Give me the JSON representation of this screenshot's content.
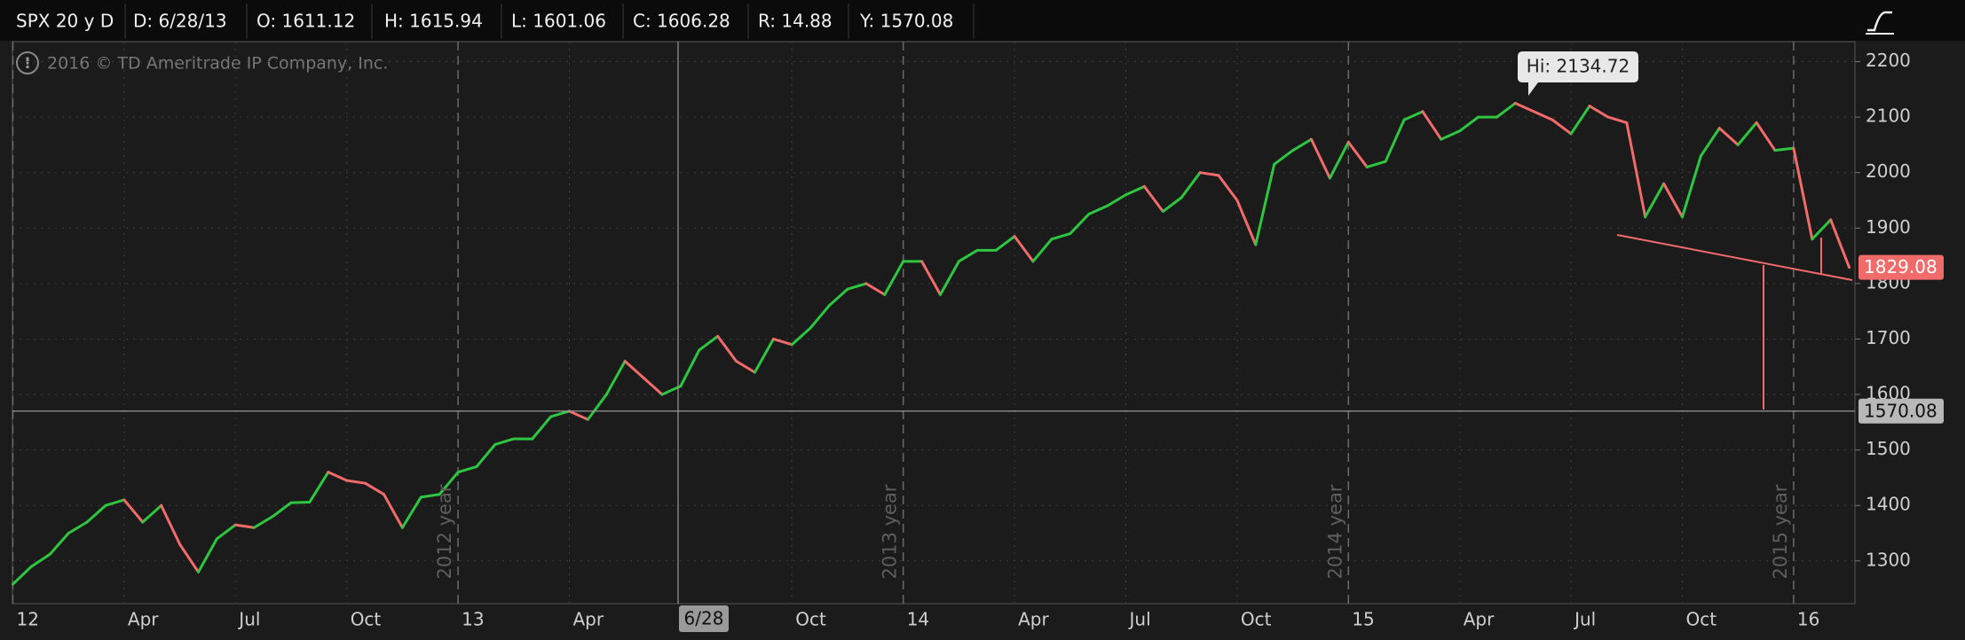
{
  "header": {
    "symbol": "SPX 20 y D",
    "date": "D: 6/28/13",
    "open": "O:  1611.12",
    "high": "H:  1615.94",
    "low": "L:  1601.06",
    "close": "C:  1606.28",
    "range": "R:  14.88",
    "y": "Y:  1570.08"
  },
  "chart_data": {
    "type": "line",
    "copyright": "2016 © TD Ameritrade IP Company, Inc.",
    "annotation": "Hi: 2134.72",
    "cursor_date": "6/28",
    "year_marks": [
      "2012 year",
      "2013 year",
      "2014 year",
      "2015 year"
    ],
    "categories": [
      "12",
      null,
      null,
      null,
      null,
      null,
      "Apr",
      null,
      null,
      null,
      null,
      null,
      "Jul",
      null,
      null,
      null,
      null,
      null,
      "Oct",
      null,
      null,
      null,
      null,
      null,
      "13",
      null,
      null,
      null,
      null,
      null,
      "Apr",
      null,
      null,
      null,
      null,
      null,
      null,
      null,
      null,
      null,
      null,
      null,
      "Oct",
      null,
      null,
      null,
      null,
      null,
      "14",
      null,
      null,
      null,
      null,
      null,
      "Apr",
      null,
      null,
      null,
      null,
      null,
      "Jul",
      null,
      null,
      null,
      null,
      null,
      "Oct",
      null,
      null,
      null,
      null,
      null,
      "15",
      null,
      null,
      null,
      null,
      null,
      "Apr",
      null,
      null,
      null,
      null,
      null,
      "Jul",
      null,
      null,
      null,
      null,
      null,
      "Oct",
      null,
      null,
      null,
      null,
      null,
      "16",
      null,
      null,
      null
    ],
    "values": [
      1258,
      1290,
      1312,
      1350,
      1370,
      1400,
      1410,
      1370,
      1400,
      1330,
      1280,
      1340,
      1365,
      1360,
      1380,
      1405,
      1406,
      1460,
      1445,
      1440,
      1420,
      1360,
      1415,
      1420,
      1460,
      1470,
      1510,
      1520,
      1520,
      1560,
      1570,
      1555,
      1600,
      1660,
      1630,
      1600,
      1615,
      1680,
      1705,
      1660,
      1640,
      1700,
      1690,
      1720,
      1760,
      1790,
      1800,
      1780,
      1840,
      1840,
      1780,
      1840,
      1860,
      1860,
      1885,
      1840,
      1880,
      1890,
      1925,
      1940,
      1960,
      1975,
      1930,
      1955,
      2000,
      1995,
      1950,
      1870,
      2015,
      2040,
      2060,
      1990,
      2055,
      2010,
      2020,
      2095,
      2110,
      2060,
      2075,
      2100,
      2100,
      2125,
      2110,
      2095,
      2070,
      2120,
      2100,
      2090,
      1920,
      1980,
      1920,
      2030,
      2080,
      2050,
      2090,
      2040,
      2044,
      1880,
      1915,
      1829
    ],
    "up_color": "#2ec640",
    "down_color": "#f26b6b",
    "last_price": 1829.08,
    "cursor_price": 1570.08,
    "ylim": [
      1223,
      2236
    ],
    "yticks": [
      1300,
      1400,
      1500,
      1600,
      1700,
      1800,
      1900,
      2000,
      2100,
      2200
    ],
    "grid": true
  }
}
